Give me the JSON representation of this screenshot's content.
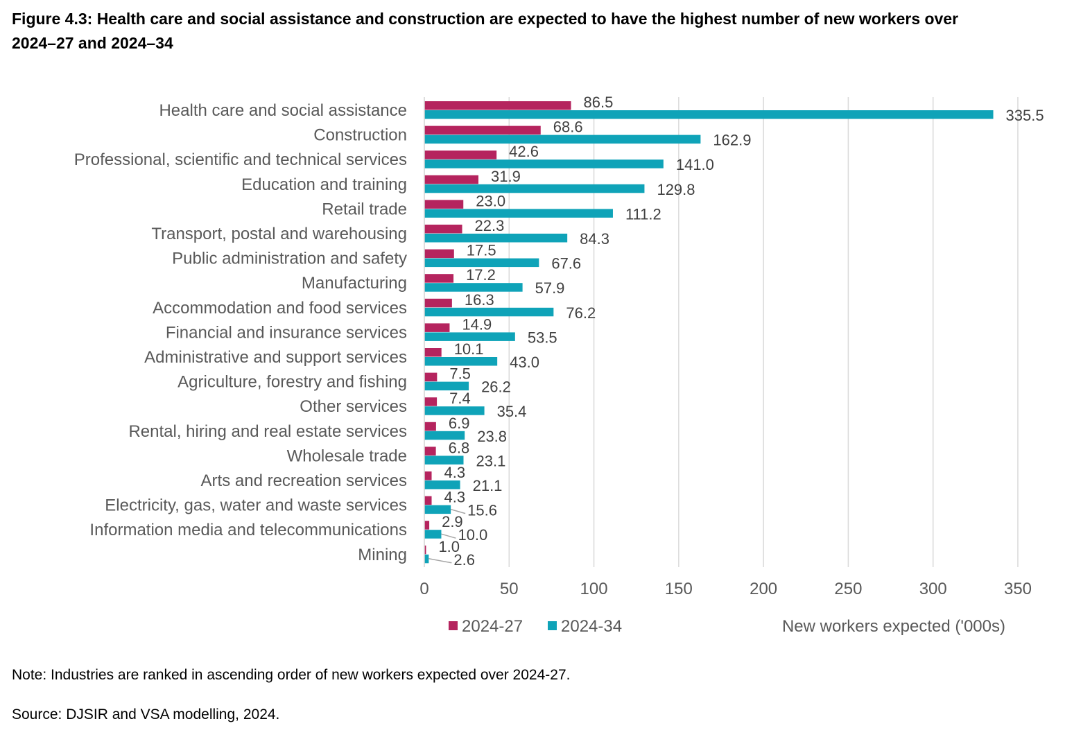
{
  "title": "Figure 4.3:  Health care and social assistance and construction are expected to have the highest number of new workers over 2024–27 and 2024–34",
  "note": "Note:  Industries are ranked in ascending order of new workers expected over 2024-27.",
  "source": "Source:  DJSIR and VSA modelling, 2024.",
  "chart_data": {
    "type": "bar",
    "orientation": "horizontal",
    "categories": [
      "Health care and social assistance",
      "Construction",
      "Professional, scientific and technical services",
      "Education and training",
      "Retail trade",
      "Transport, postal and warehousing",
      "Public administration and safety",
      "Manufacturing",
      "Accommodation and food services",
      "Financial and insurance services",
      "Administrative and support services",
      "Agriculture, forestry and fishing",
      "Other services",
      "Rental, hiring and real estate services",
      "Wholesale trade",
      "Arts and recreation services",
      "Electricity, gas, water and waste services",
      "Information media and telecommunications",
      "Mining"
    ],
    "series": [
      {
        "name": "2024-27",
        "color": "#B5245E",
        "values": [
          86.5,
          68.6,
          42.6,
          31.9,
          23.0,
          22.3,
          17.5,
          17.2,
          16.3,
          14.9,
          10.1,
          7.5,
          7.4,
          6.9,
          6.8,
          4.3,
          4.3,
          2.9,
          1.0
        ]
      },
      {
        "name": "2024-34",
        "color": "#0FA3B8",
        "values": [
          335.5,
          162.9,
          141.0,
          129.8,
          111.2,
          84.3,
          67.6,
          57.9,
          76.2,
          53.5,
          43.0,
          26.2,
          35.4,
          23.8,
          23.1,
          21.1,
          15.6,
          10.0,
          2.6
        ]
      }
    ],
    "xlabel": "New workers expected ('000s)",
    "ylabel": "",
    "xlim": [
      0,
      350
    ],
    "xticks": [
      "0",
      "50",
      "100",
      "150",
      "200",
      "250",
      "300",
      "350"
    ],
    "grid": true,
    "legend_position": "bottom"
  }
}
